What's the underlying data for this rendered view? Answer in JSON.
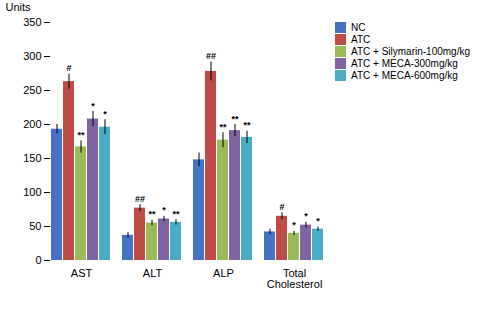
{
  "chart_data": {
    "type": "bar",
    "categories": [
      "AST",
      "ALT",
      "ALP",
      "Total\nCholesterol"
    ],
    "series": [
      {
        "name": "NC",
        "color": "#4472C4",
        "values": [
          193,
          37,
          148,
          42
        ],
        "errors": [
          7,
          4,
          10,
          4
        ]
      },
      {
        "name": "ATC",
        "color": "#BE4B48",
        "values": [
          263,
          77,
          278,
          65
        ],
        "errors": [
          11,
          5,
          14,
          5
        ]
      },
      {
        "name": "ATC + Silymarin-100mg/kg",
        "color": "#9BBB59",
        "values": [
          167,
          55,
          177,
          40
        ],
        "errors": [
          9,
          4,
          11,
          3
        ]
      },
      {
        "name": "ATC + MECA-300mg/kg",
        "color": "#8064A2",
        "values": [
          208,
          61,
          191,
          52
        ],
        "errors": [
          11,
          4,
          9,
          4
        ]
      },
      {
        "name": "ATC + MECA-600mg/kg",
        "color": "#4BACC6",
        "values": [
          196,
          56,
          181,
          46
        ],
        "errors": [
          11,
          4,
          9,
          3
        ]
      }
    ],
    "ylabel": "Units",
    "ylim": [
      0,
      350
    ],
    "yticks": [
      0,
      50,
      100,
      150,
      200,
      250,
      300,
      350
    ],
    "annotations": [
      {
        "category": "AST",
        "series": "ATC",
        "text": "#"
      },
      {
        "category": "AST",
        "series": "ATC + Silymarin-100mg/kg",
        "text": "**"
      },
      {
        "category": "AST",
        "series": "ATC + MECA-300mg/kg",
        "text": "*"
      },
      {
        "category": "AST",
        "series": "ATC + MECA-600mg/kg",
        "text": "*"
      },
      {
        "category": "ALT",
        "series": "ATC",
        "text": "##"
      },
      {
        "category": "ALT",
        "series": "ATC + Silymarin-100mg/kg",
        "text": "**"
      },
      {
        "category": "ALT",
        "series": "ATC + MECA-300mg/kg",
        "text": "*"
      },
      {
        "category": "ALT",
        "series": "ATC + MECA-600mg/kg",
        "text": "**"
      },
      {
        "category": "ALP",
        "series": "ATC",
        "text": "##"
      },
      {
        "category": "ALP",
        "series": "ATC + Silymarin-100mg/kg",
        "text": "**"
      },
      {
        "category": "ALP",
        "series": "ATC + MECA-300mg/kg",
        "text": "**"
      },
      {
        "category": "ALP",
        "series": "ATC + MECA-600mg/kg",
        "text": "**"
      },
      {
        "category": "Total\nCholesterol",
        "series": "ATC",
        "text": "#"
      },
      {
        "category": "Total\nCholesterol",
        "series": "ATC + Silymarin-100mg/kg",
        "text": "*"
      },
      {
        "category": "Total\nCholesterol",
        "series": "ATC + MECA-300mg/kg",
        "text": "*"
      },
      {
        "category": "Total\nCholesterol",
        "series": "ATC + MECA-600mg/kg",
        "text": "*"
      }
    ],
    "grid": false,
    "legend": "right"
  }
}
